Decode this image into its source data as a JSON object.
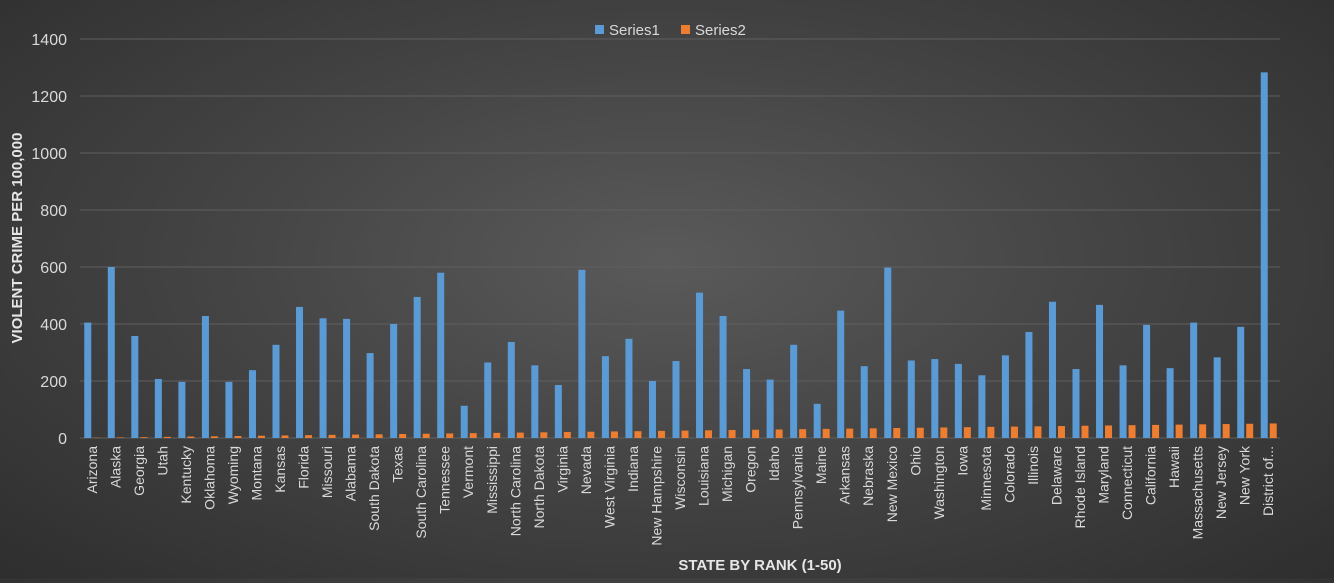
{
  "chart_data": {
    "type": "bar",
    "xlabel": "STATE BY RANK (1-50)",
    "ylabel": "VIOLENT CRIME PER 100,000",
    "ylim": [
      0,
      1400
    ],
    "yticks": [
      0,
      200,
      400,
      600,
      800,
      1000,
      1200,
      1400
    ],
    "grid": true,
    "legend_position": "top",
    "categories": [
      "Arizona",
      "Alaska",
      "Georgia",
      "Utah",
      "Kentucky",
      "Oklahoma",
      "Wyoming",
      "Montana",
      "Kansas",
      "Florida",
      "Missouri",
      "Alabama",
      "South Dakota",
      "Texas",
      "South Carolina",
      "Tennessee",
      "Vermont",
      "Mississippi",
      "North Carolina",
      "North Dakota",
      "Virginia",
      "Nevada",
      "West Virginia",
      "Indiana",
      "New Hampshire",
      "Wisconsin",
      "Louisiana",
      "Michigan",
      "Oregon",
      "Idaho",
      "Pennsylvania",
      "Maine",
      "Arkansas",
      "Nebraska",
      "New Mexico",
      "Ohio",
      "Washington",
      "Iowa",
      "Minnesota",
      "Colorado",
      "Illinois",
      "Delaware",
      "Rhode Island",
      "Maryland",
      "Connecticut",
      "California",
      "Hawaii",
      "Massachusetts",
      "New Jersey",
      "New York",
      "District of..."
    ],
    "series": [
      {
        "name": "Series1",
        "color": "#5b9bd5",
        "values": [
          405,
          600,
          358,
          207,
          197,
          428,
          197,
          238,
          327,
          460,
          420,
          418,
          298,
          400,
          495,
          580,
          113,
          265,
          337,
          255,
          186,
          590,
          287,
          348,
          200,
          270,
          510,
          428,
          242,
          205,
          327,
          120,
          447,
          252,
          598,
          272,
          277,
          260,
          220,
          290,
          372,
          478,
          242,
          467,
          255,
          397,
          245,
          405,
          283,
          390,
          1283
        ]
      },
      {
        "name": "Series2",
        "color": "#ed7d31",
        "values": [
          1,
          2,
          3,
          4,
          5,
          6,
          7,
          8,
          9,
          10,
          11,
          12,
          13,
          14,
          15,
          16,
          17,
          18,
          19,
          20,
          21,
          22,
          23,
          24,
          25,
          26,
          27,
          28,
          29,
          30,
          31,
          32,
          33,
          34,
          35,
          36,
          37,
          38,
          39,
          40,
          41,
          42,
          43,
          44,
          45,
          46,
          47,
          48,
          49,
          50,
          51
        ]
      }
    ]
  }
}
